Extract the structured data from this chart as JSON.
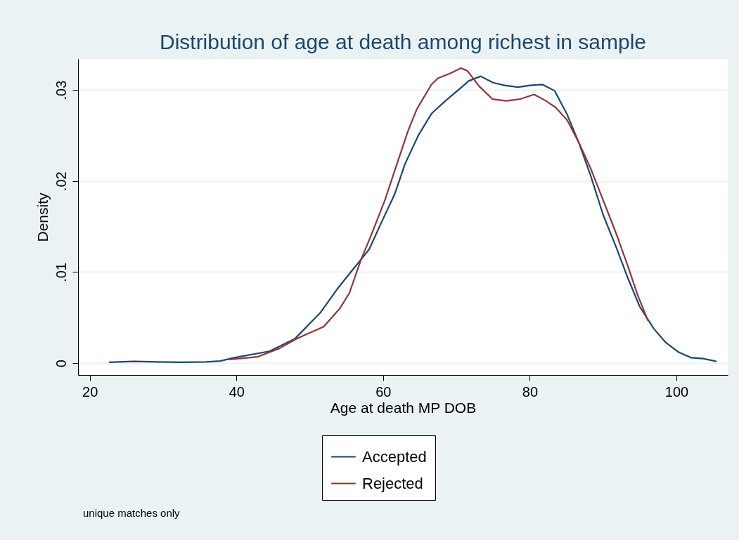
{
  "chart_data": {
    "type": "line",
    "title": "Distribution of age at death among richest in sample",
    "xlabel": "Age at death MP DOB",
    "ylabel": "Density",
    "xlim": [
      18.4,
      107
    ],
    "xticks": [
      20,
      40,
      60,
      80,
      100
    ],
    "ylim": [
      -0.0013,
      0.0334
    ],
    "yticks": [
      {
        "value": 0,
        "label": "0"
      },
      {
        "value": 0.01,
        "label": ".01"
      },
      {
        "value": 0.02,
        "label": ".02"
      },
      {
        "value": 0.03,
        "label": ".03"
      }
    ],
    "grid": "y",
    "legend": "bottom",
    "line_style": "solid",
    "marker": "none",
    "annotations": [
      "unique matches only"
    ],
    "series": [
      {
        "name": "Accepted",
        "color": "#1a476f",
        "x": [
          22.7,
          26.0,
          29.2,
          32.4,
          35.9,
          37.8,
          39.7,
          44.5,
          48.0,
          51.4,
          53.8,
          56.0,
          58.1,
          59.8,
          61.6,
          63.0,
          64.8,
          66.6,
          68.5,
          70.4,
          71.7,
          73.3,
          75.0,
          76.6,
          78.4,
          80.0,
          81.7,
          83.4,
          85.1,
          86.7,
          88.3,
          90.0,
          91.8,
          93.4,
          95.0,
          96.9,
          98.5,
          100.3,
          102.0,
          103.6,
          105.4
        ],
        "values": [
          0.0001,
          0.0002,
          0.00013,
          0.0001,
          0.00013,
          0.00023,
          0.0006,
          0.0013,
          0.0027,
          0.0055,
          0.0082,
          0.0104,
          0.0125,
          0.0155,
          0.0186,
          0.0219,
          0.025,
          0.0274,
          0.0288,
          0.0301,
          0.031,
          0.0315,
          0.0308,
          0.0305,
          0.0303,
          0.0305,
          0.0306,
          0.0299,
          0.0273,
          0.0242,
          0.0206,
          0.0163,
          0.0127,
          0.0093,
          0.0062,
          0.0038,
          0.0023,
          0.0012,
          0.0006,
          0.0005,
          0.0002
        ]
      },
      {
        "name": "Rejected",
        "color": "#90353b",
        "x": [
          39.1,
          42.9,
          45.8,
          48.0,
          49.6,
          51.9,
          54.1,
          55.4,
          57.0,
          58.3,
          60.2,
          61.9,
          63.4,
          64.6,
          66.6,
          67.5,
          69.1,
          70.6,
          71.5,
          73.1,
          74.9,
          76.8,
          78.7,
          80.6,
          82.2,
          83.5,
          85.1,
          86.7,
          88.3,
          90.2,
          91.8,
          93.4,
          94.7,
          96.1
        ],
        "values": [
          0.0004,
          0.0007,
          0.0016,
          0.0026,
          0.0032,
          0.004,
          0.006,
          0.0077,
          0.0114,
          0.0139,
          0.0178,
          0.0219,
          0.0255,
          0.0279,
          0.0306,
          0.0313,
          0.0318,
          0.0324,
          0.0321,
          0.0304,
          0.029,
          0.0288,
          0.029,
          0.0295,
          0.0288,
          0.0281,
          0.0267,
          0.0242,
          0.0214,
          0.0175,
          0.0142,
          0.0106,
          0.0075,
          0.0047
        ]
      }
    ]
  }
}
